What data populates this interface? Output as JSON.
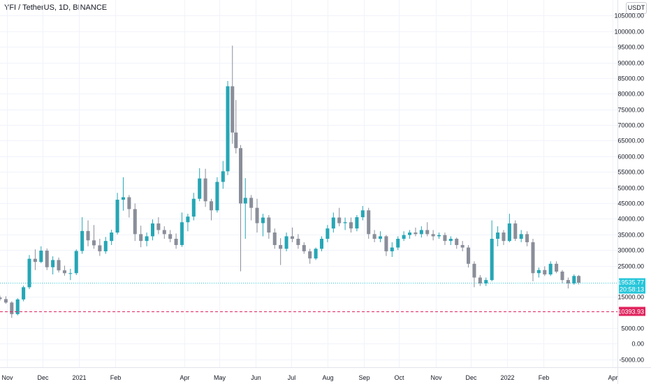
{
  "header": {
    "title": "YFI / TetherUS, 1D, BINANCE",
    "currency": "USDT"
  },
  "colors": {
    "up": "#26a6b5",
    "down": "#8a8e99",
    "current_price_line": "#26c6da",
    "marker_line": "#e0245e"
  },
  "chart_data": {
    "type": "candlestick",
    "title": "YFI / TetherUS, 1D, BINANCE",
    "y_axis_unit": "USDT",
    "ylim": [
      -7500,
      110000
    ],
    "y_ticks": [
      {
        "value": 105000,
        "label": "105000.00"
      },
      {
        "value": 100000,
        "label": "100000.00"
      },
      {
        "value": 95000,
        "label": "95000.00"
      },
      {
        "value": 90000,
        "label": "90000.00"
      },
      {
        "value": 85000,
        "label": "85000.00"
      },
      {
        "value": 80000,
        "label": "80000.00"
      },
      {
        "value": 75000,
        "label": "75000.00"
      },
      {
        "value": 70000,
        "label": "70000.00"
      },
      {
        "value": 65000,
        "label": "65000.00"
      },
      {
        "value": 60000,
        "label": "60000.00"
      },
      {
        "value": 55000,
        "label": "55000.00"
      },
      {
        "value": 50000,
        "label": "50000.00"
      },
      {
        "value": 45000,
        "label": "45000.00"
      },
      {
        "value": 40000,
        "label": "40000.00"
      },
      {
        "value": 35000,
        "label": "35000.00"
      },
      {
        "value": 30000,
        "label": "30000.00"
      },
      {
        "value": 25000,
        "label": "25000.00"
      },
      {
        "value": 15000,
        "label": "15000.00"
      },
      {
        "value": 5000,
        "label": "5000.00"
      },
      {
        "value": 0,
        "label": "0.00"
      },
      {
        "value": -5000,
        "label": "-5000.00"
      }
    ],
    "x_ticks": [
      {
        "date": "2020-11-01",
        "label": "Nov"
      },
      {
        "date": "2020-12-01",
        "label": "Dec"
      },
      {
        "date": "2021-01-01",
        "label": "2021"
      },
      {
        "date": "2021-02-01",
        "label": "Feb"
      },
      {
        "date": "2021-04-01",
        "label": "Apr"
      },
      {
        "date": "2021-05-01",
        "label": "May"
      },
      {
        "date": "2021-06-01",
        "label": "Jun"
      },
      {
        "date": "2021-07-01",
        "label": "Jul"
      },
      {
        "date": "2021-08-01",
        "label": "Aug"
      },
      {
        "date": "2021-09-01",
        "label": "Sep"
      },
      {
        "date": "2021-10-01",
        "label": "Oct"
      },
      {
        "date": "2021-11-01",
        "label": "Nov"
      },
      {
        "date": "2021-12-01",
        "label": "Dec"
      },
      {
        "date": "2022-01-01",
        "label": "2022"
      },
      {
        "date": "2022-02-01",
        "label": "Feb"
      },
      {
        "date": "2022-04-01",
        "label": "Apr"
      }
    ],
    "x_range": [
      "2020-10-26",
      "2022-04-05"
    ],
    "current_price": {
      "value": 19535.77,
      "label": "19535.77",
      "countdown": "20:58:13"
    },
    "horizontal_line": {
      "value": 10393.93,
      "label": "10393.93",
      "style": "dashed"
    },
    "grid": true,
    "candles": [
      {
        "date": "2020-10-26",
        "o": 14800,
        "h": 15400,
        "l": 13800,
        "c": 14300
      },
      {
        "date": "2020-10-31",
        "o": 14300,
        "h": 15200,
        "l": 12800,
        "c": 13200
      },
      {
        "date": "2020-11-05",
        "o": 13200,
        "h": 13600,
        "l": 8300,
        "c": 9500
      },
      {
        "date": "2020-11-10",
        "o": 9500,
        "h": 14600,
        "l": 9100,
        "c": 14200
      },
      {
        "date": "2020-11-15",
        "o": 14200,
        "h": 18600,
        "l": 13600,
        "c": 18100
      },
      {
        "date": "2020-11-20",
        "o": 18100,
        "h": 28400,
        "l": 17500,
        "c": 27200
      },
      {
        "date": "2020-11-25",
        "o": 27200,
        "h": 30200,
        "l": 23600,
        "c": 26200
      },
      {
        "date": "2020-11-30",
        "o": 26200,
        "h": 31200,
        "l": 25800,
        "c": 29800
      },
      {
        "date": "2020-12-05",
        "o": 29800,
        "h": 30500,
        "l": 23600,
        "c": 24500
      },
      {
        "date": "2020-12-10",
        "o": 24500,
        "h": 28000,
        "l": 22200,
        "c": 26800
      },
      {
        "date": "2020-12-15",
        "o": 26800,
        "h": 27600,
        "l": 22800,
        "c": 23500
      },
      {
        "date": "2020-12-20",
        "o": 23500,
        "h": 25000,
        "l": 21800,
        "c": 22600
      },
      {
        "date": "2020-12-25",
        "o": 22600,
        "h": 24000,
        "l": 20400,
        "c": 22600
      },
      {
        "date": "2020-12-30",
        "o": 22600,
        "h": 30200,
        "l": 22000,
        "c": 29700
      },
      {
        "date": "2021-01-04",
        "o": 29700,
        "h": 40500,
        "l": 28800,
        "c": 36100
      },
      {
        "date": "2021-01-09",
        "o": 36100,
        "h": 39500,
        "l": 31200,
        "c": 33100
      },
      {
        "date": "2021-01-14",
        "o": 33100,
        "h": 38000,
        "l": 30400,
        "c": 31500
      },
      {
        "date": "2021-01-19",
        "o": 31500,
        "h": 33600,
        "l": 28100,
        "c": 29600
      },
      {
        "date": "2021-01-24",
        "o": 29600,
        "h": 34200,
        "l": 28800,
        "c": 32900
      },
      {
        "date": "2021-01-29",
        "o": 32900,
        "h": 36500,
        "l": 31600,
        "c": 35600
      },
      {
        "date": "2021-02-03",
        "o": 35600,
        "h": 48300,
        "l": 35000,
        "c": 46100
      },
      {
        "date": "2021-02-08",
        "o": 46100,
        "h": 53300,
        "l": 42600,
        "c": 46900
      },
      {
        "date": "2021-02-13",
        "o": 46900,
        "h": 47600,
        "l": 40400,
        "c": 43100
      },
      {
        "date": "2021-02-18",
        "o": 43100,
        "h": 44900,
        "l": 32900,
        "c": 35100
      },
      {
        "date": "2021-02-23",
        "o": 35100,
        "h": 37800,
        "l": 30900,
        "c": 32900
      },
      {
        "date": "2021-02-28",
        "o": 32900,
        "h": 35600,
        "l": 31200,
        "c": 34400
      },
      {
        "date": "2021-03-05",
        "o": 34400,
        "h": 39800,
        "l": 33100,
        "c": 38500
      },
      {
        "date": "2021-03-10",
        "o": 38500,
        "h": 40500,
        "l": 35100,
        "c": 36400
      },
      {
        "date": "2021-03-15",
        "o": 36400,
        "h": 37600,
        "l": 33600,
        "c": 35100
      },
      {
        "date": "2021-03-20",
        "o": 35100,
        "h": 36400,
        "l": 32500,
        "c": 33600
      },
      {
        "date": "2021-03-25",
        "o": 33600,
        "h": 35300,
        "l": 30400,
        "c": 31600
      },
      {
        "date": "2021-03-30",
        "o": 31600,
        "h": 42000,
        "l": 31000,
        "c": 38900
      },
      {
        "date": "2021-04-04",
        "o": 38900,
        "h": 41600,
        "l": 36000,
        "c": 40700
      },
      {
        "date": "2021-04-09",
        "o": 40700,
        "h": 48300,
        "l": 39500,
        "c": 46400
      },
      {
        "date": "2021-04-14",
        "o": 46400,
        "h": 56200,
        "l": 45600,
        "c": 52900
      },
      {
        "date": "2021-04-19",
        "o": 52900,
        "h": 56000,
        "l": 43800,
        "c": 45600
      },
      {
        "date": "2021-04-24",
        "o": 45600,
        "h": 46400,
        "l": 39500,
        "c": 42700
      },
      {
        "date": "2021-04-29",
        "o": 42700,
        "h": 53300,
        "l": 42000,
        "c": 51800
      },
      {
        "date": "2021-05-04",
        "o": 51800,
        "h": 58500,
        "l": 49600,
        "c": 55200
      },
      {
        "date": "2021-05-08",
        "o": 55200,
        "h": 84100,
        "l": 54000,
        "c": 82400
      },
      {
        "date": "2021-05-12",
        "o": 82400,
        "h": 95400,
        "l": 64000,
        "c": 67600
      },
      {
        "date": "2021-05-15",
        "o": 67600,
        "h": 78000,
        "l": 60900,
        "c": 62600
      },
      {
        "date": "2021-05-19",
        "o": 62600,
        "h": 63600,
        "l": 23200,
        "c": 44900
      },
      {
        "date": "2021-05-23",
        "o": 44900,
        "h": 53000,
        "l": 33600,
        "c": 46700
      },
      {
        "date": "2021-05-28",
        "o": 46700,
        "h": 47600,
        "l": 39500,
        "c": 43500
      },
      {
        "date": "2021-06-02",
        "o": 43500,
        "h": 46400,
        "l": 35600,
        "c": 38600
      },
      {
        "date": "2021-06-07",
        "o": 38600,
        "h": 41600,
        "l": 34400,
        "c": 40400
      },
      {
        "date": "2021-06-12",
        "o": 40400,
        "h": 41200,
        "l": 33600,
        "c": 35600
      },
      {
        "date": "2021-06-17",
        "o": 35600,
        "h": 36900,
        "l": 30400,
        "c": 31600
      },
      {
        "date": "2021-06-22",
        "o": 31600,
        "h": 33800,
        "l": 25200,
        "c": 30400
      },
      {
        "date": "2021-06-27",
        "o": 30400,
        "h": 35600,
        "l": 29600,
        "c": 34400
      },
      {
        "date": "2021-07-02",
        "o": 34400,
        "h": 37200,
        "l": 32500,
        "c": 33600
      },
      {
        "date": "2021-07-07",
        "o": 33600,
        "h": 35100,
        "l": 30400,
        "c": 31600
      },
      {
        "date": "2021-07-12",
        "o": 31600,
        "h": 32500,
        "l": 28800,
        "c": 29600
      },
      {
        "date": "2021-07-17",
        "o": 29600,
        "h": 30400,
        "l": 25600,
        "c": 27300
      },
      {
        "date": "2021-07-22",
        "o": 27300,
        "h": 30800,
        "l": 26800,
        "c": 30400
      },
      {
        "date": "2021-07-27",
        "o": 30400,
        "h": 34400,
        "l": 29600,
        "c": 33600
      },
      {
        "date": "2021-08-01",
        "o": 33600,
        "h": 38000,
        "l": 32500,
        "c": 36900
      },
      {
        "date": "2021-08-06",
        "o": 36900,
        "h": 42000,
        "l": 35600,
        "c": 40400
      },
      {
        "date": "2021-08-11",
        "o": 40400,
        "h": 43500,
        "l": 37600,
        "c": 38600
      },
      {
        "date": "2021-08-16",
        "o": 38600,
        "h": 40400,
        "l": 36400,
        "c": 38900
      },
      {
        "date": "2021-08-21",
        "o": 38900,
        "h": 40400,
        "l": 35600,
        "c": 36900
      },
      {
        "date": "2021-08-26",
        "o": 36900,
        "h": 41200,
        "l": 36000,
        "c": 40500
      },
      {
        "date": "2021-08-31",
        "o": 40500,
        "h": 44100,
        "l": 39500,
        "c": 42700
      },
      {
        "date": "2021-09-05",
        "o": 42700,
        "h": 43500,
        "l": 33600,
        "c": 35100
      },
      {
        "date": "2021-09-10",
        "o": 35100,
        "h": 36400,
        "l": 32500,
        "c": 33600
      },
      {
        "date": "2021-09-15",
        "o": 33600,
        "h": 36000,
        "l": 32500,
        "c": 34400
      },
      {
        "date": "2021-09-20",
        "o": 34400,
        "h": 34800,
        "l": 28100,
        "c": 29600
      },
      {
        "date": "2021-09-25",
        "o": 29600,
        "h": 32500,
        "l": 27800,
        "c": 30800
      },
      {
        "date": "2021-09-30",
        "o": 30800,
        "h": 34400,
        "l": 30000,
        "c": 33600
      },
      {
        "date": "2021-10-05",
        "o": 33600,
        "h": 36000,
        "l": 32900,
        "c": 34800
      },
      {
        "date": "2021-10-10",
        "o": 34800,
        "h": 36400,
        "l": 33600,
        "c": 35600
      },
      {
        "date": "2021-10-15",
        "o": 35600,
        "h": 37200,
        "l": 34400,
        "c": 35100
      },
      {
        "date": "2021-10-20",
        "o": 35100,
        "h": 37600,
        "l": 34000,
        "c": 36400
      },
      {
        "date": "2021-10-25",
        "o": 36400,
        "h": 38900,
        "l": 34400,
        "c": 35100
      },
      {
        "date": "2021-10-30",
        "o": 35100,
        "h": 36400,
        "l": 33100,
        "c": 34400
      },
      {
        "date": "2021-11-04",
        "o": 34400,
        "h": 35600,
        "l": 33600,
        "c": 34800
      },
      {
        "date": "2021-11-09",
        "o": 34800,
        "h": 35600,
        "l": 31600,
        "c": 32900
      },
      {
        "date": "2021-11-14",
        "o": 32900,
        "h": 34400,
        "l": 31600,
        "c": 33600
      },
      {
        "date": "2021-11-19",
        "o": 33600,
        "h": 34000,
        "l": 30400,
        "c": 31600
      },
      {
        "date": "2021-11-24",
        "o": 31600,
        "h": 32900,
        "l": 29600,
        "c": 30800
      },
      {
        "date": "2021-11-29",
        "o": 30800,
        "h": 31600,
        "l": 24400,
        "c": 25600
      },
      {
        "date": "2021-12-04",
        "o": 25600,
        "h": 26400,
        "l": 18100,
        "c": 21200
      },
      {
        "date": "2021-12-09",
        "o": 21200,
        "h": 22000,
        "l": 18500,
        "c": 19300
      },
      {
        "date": "2021-12-14",
        "o": 19300,
        "h": 21200,
        "l": 18500,
        "c": 20400
      },
      {
        "date": "2021-12-19",
        "o": 20400,
        "h": 39500,
        "l": 20000,
        "c": 33600
      },
      {
        "date": "2021-12-24",
        "o": 33600,
        "h": 37600,
        "l": 31200,
        "c": 35600
      },
      {
        "date": "2021-12-29",
        "o": 35600,
        "h": 36400,
        "l": 31600,
        "c": 32900
      },
      {
        "date": "2022-01-03",
        "o": 32900,
        "h": 41600,
        "l": 32500,
        "c": 38500
      },
      {
        "date": "2022-01-08",
        "o": 38500,
        "h": 39500,
        "l": 32900,
        "c": 33600
      },
      {
        "date": "2022-01-13",
        "o": 33600,
        "h": 36400,
        "l": 32500,
        "c": 35100
      },
      {
        "date": "2022-01-18",
        "o": 35100,
        "h": 36000,
        "l": 31200,
        "c": 32500
      },
      {
        "date": "2022-01-23",
        "o": 32500,
        "h": 33600,
        "l": 20000,
        "c": 22600
      },
      {
        "date": "2022-01-28",
        "o": 22600,
        "h": 24400,
        "l": 21200,
        "c": 23600
      },
      {
        "date": "2022-02-02",
        "o": 23600,
        "h": 24800,
        "l": 21700,
        "c": 22200
      },
      {
        "date": "2022-02-07",
        "o": 22200,
        "h": 26400,
        "l": 21700,
        "c": 25600
      },
      {
        "date": "2022-02-12",
        "o": 25600,
        "h": 26400,
        "l": 22600,
        "c": 23100
      },
      {
        "date": "2022-02-17",
        "o": 23100,
        "h": 23600,
        "l": 19300,
        "c": 20400
      },
      {
        "date": "2022-02-22",
        "o": 20400,
        "h": 21200,
        "l": 17700,
        "c": 19300
      },
      {
        "date": "2022-02-27",
        "o": 19300,
        "h": 22200,
        "l": 18900,
        "c": 21700
      },
      {
        "date": "2022-03-03",
        "o": 21700,
        "h": 22000,
        "l": 19000,
        "c": 19536
      }
    ]
  }
}
